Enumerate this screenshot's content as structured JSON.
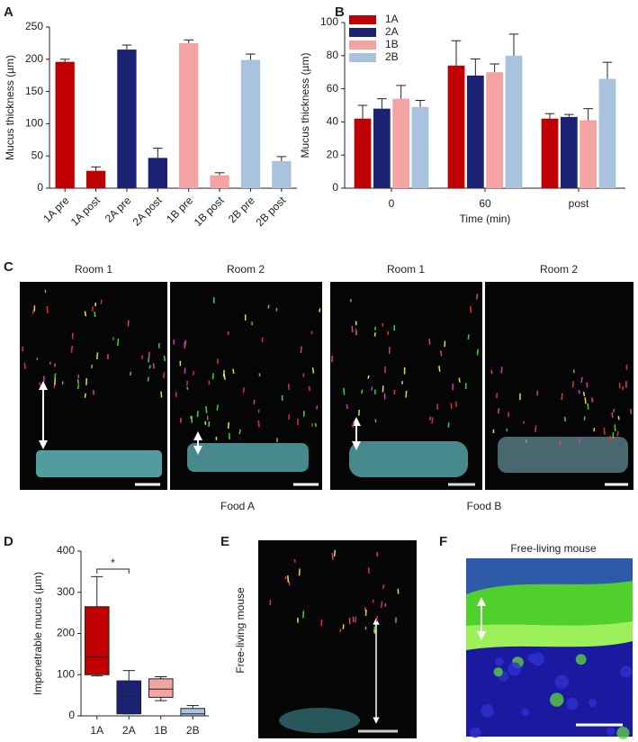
{
  "chart_data": [
    {
      "type": "bar",
      "panel": "A",
      "categories": [
        "1A pre",
        "1A post",
        "2A pre",
        "2A post",
        "1B pre",
        "1B post",
        "2B pre",
        "2B post"
      ],
      "values": [
        196,
        27,
        215,
        47,
        225,
        20,
        199,
        42
      ],
      "errors": [
        4,
        6,
        7,
        15,
        5,
        4,
        9,
        7
      ],
      "colors": [
        "#c00000",
        "#c00000",
        "#1c2273",
        "#1c2273",
        "#f4a3a3",
        "#f4a3a3",
        "#a9c3de",
        "#a9c3de"
      ],
      "y_label": "Mucus thickness (µm)",
      "ylim": [
        0,
        250
      ],
      "yticks": [
        0,
        50,
        100,
        150,
        200,
        250
      ]
    },
    {
      "type": "grouped_bar",
      "panel": "B",
      "categories": [
        "0",
        "60",
        "post"
      ],
      "series": [
        {
          "name": "1A",
          "color": "#c00000",
          "values": [
            42,
            74,
            42
          ],
          "errors": [
            8,
            15,
            3
          ]
        },
        {
          "name": "2A",
          "color": "#1c2273",
          "values": [
            48,
            68,
            43
          ],
          "errors": [
            6,
            10,
            1.5
          ]
        },
        {
          "name": "1B",
          "color": "#f4a3a3",
          "values": [
            54,
            70,
            41
          ],
          "errors": [
            8,
            5,
            7
          ]
        },
        {
          "name": "2B",
          "color": "#a9c3de",
          "values": [
            49,
            80,
            66
          ],
          "errors": [
            4,
            13,
            10
          ]
        }
      ],
      "x_label": "Time (min)",
      "y_label": "Mucus thickness (µm)",
      "legend": "upper left",
      "ylim": [
        0,
        100
      ],
      "yticks": [
        0,
        20,
        40,
        60,
        80,
        100
      ]
    },
    {
      "type": "box",
      "panel": "D",
      "categories": [
        "1A",
        "2A",
        "1B",
        "2B"
      ],
      "boxes": [
        {
          "min": 97,
          "q1": 100,
          "median": 143,
          "q3": 265,
          "max": 338
        },
        {
          "min": 5,
          "q1": 5,
          "median": 47,
          "q3": 85,
          "max": 110
        },
        {
          "min": 37,
          "q1": 45,
          "median": 65,
          "q3": 90,
          "max": 95
        },
        {
          "min": 0,
          "q1": 0,
          "median": 5,
          "q3": 18,
          "max": 25
        }
      ],
      "colors": [
        "#c00000",
        "#1c2273",
        "#f4a3a3",
        "#a9c3de"
      ],
      "annotation": "*",
      "y_label": "Impenetrable mucus (µm)",
      "ylim": [
        0,
        400
      ],
      "yticks": [
        0,
        100,
        200,
        300,
        400
      ]
    }
  ],
  "panel_C": {
    "letter": "C",
    "room_labels": [
      "Room 1",
      "Room 2",
      "Room 1",
      "Room 2"
    ],
    "food_labels": [
      "Food A",
      "Food B"
    ]
  },
  "panel_E": {
    "letter": "E",
    "label": "Free-living mouse"
  },
  "panel_F": {
    "letter": "F",
    "title": "Free-living mouse"
  }
}
